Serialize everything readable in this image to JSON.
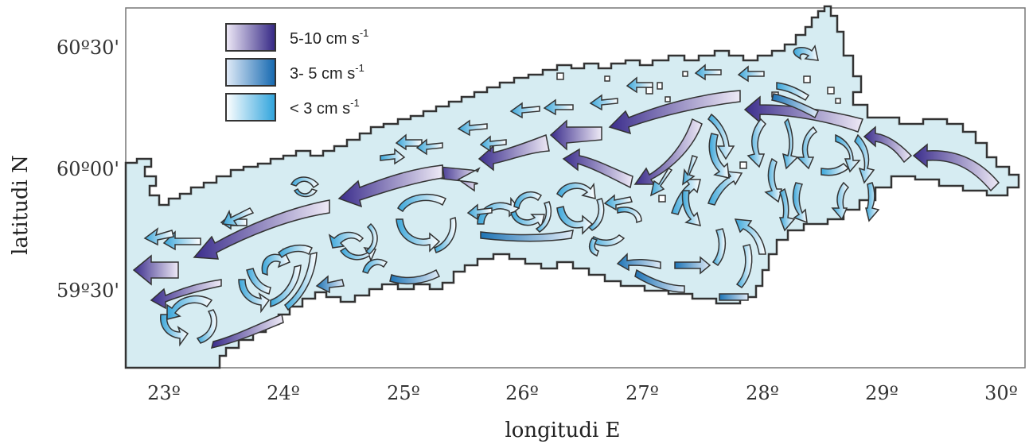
{
  "map": {
    "x_axis": {
      "title": "longitudi E",
      "tick_labels": [
        "23º",
        "24º",
        "25º",
        "26º",
        "27º",
        "28º",
        "29º",
        "30º"
      ]
    },
    "y_axis": {
      "title": "latitudi N",
      "tick_labels": [
        "60º30'",
        "60º00'",
        "59º30'"
      ]
    },
    "legend": [
      {
        "range": "5-10",
        "unit": "cm",
        "unit_s": "s",
        "exp": "-1",
        "color_light": "#e8e4f4",
        "color_dark": "#3a2f8a"
      },
      {
        "range": "3- 5",
        "unit": "cm",
        "unit_s": "s",
        "exp": "-1",
        "color_light": "#cfe2f6",
        "color_dark": "#1a6fb5"
      },
      {
        "range": "< 3",
        "unit": "cm",
        "unit_s": "s",
        "exp": "-1",
        "color_light": "#ffffff",
        "color_dark": "#35a8dc"
      }
    ],
    "colors": {
      "sea": "#d6ecf2",
      "coast": "#333333",
      "strong": "#3d2f8e",
      "medium": "#1c7ab8",
      "weak": "#3aa3d6"
    }
  }
}
